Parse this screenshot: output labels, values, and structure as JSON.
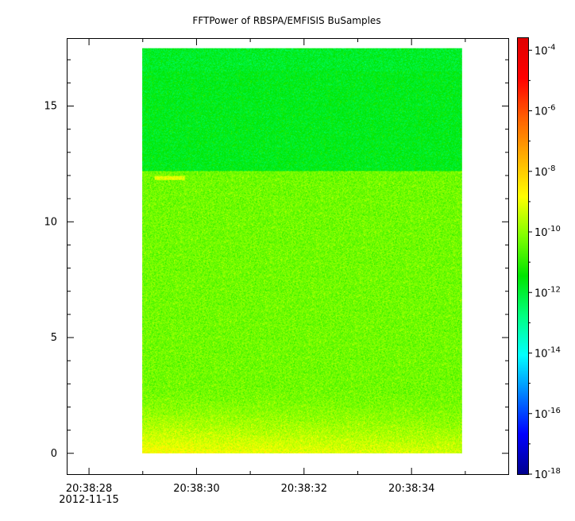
{
  "chart_data": {
    "type": "heatmap",
    "title": "FFTPower of RBSPA/EMFISIS  BuSamples",
    "xlabel": "",
    "ylabel": "",
    "x_ticks": [
      {
        "time": "20:38:28",
        "date": "2012-11-15"
      },
      {
        "time": "20:38:30",
        "date": ""
      },
      {
        "time": "20:38:32",
        "date": ""
      },
      {
        "time": "20:38:34",
        "date": ""
      }
    ],
    "x_range": [
      "20:38:27.6",
      "20:38:35.8"
    ],
    "data_x_range": [
      "20:38:28.99",
      "20:38:34.94"
    ],
    "y_ticks": [
      0,
      5,
      10,
      15
    ],
    "y_range": [
      -0.9,
      17.9
    ],
    "data_y_range": [
      0,
      17.5
    ],
    "colorbar": {
      "scale": "log",
      "range_exponent": [
        -18,
        -3.6
      ],
      "tick_exponents": [
        -18,
        -16,
        -14,
        -12,
        -10,
        -8,
        -6,
        -4
      ],
      "colors": [
        "#00008f",
        "#0000ff",
        "#0080ff",
        "#00ffff",
        "#00ff80",
        "#00e600",
        "#80ff00",
        "#ffff00",
        "#ffb000",
        "#ff6000",
        "#ff0000",
        "#e00000"
      ]
    },
    "bands": [
      {
        "y_from": 12.2,
        "y_to": 17.5,
        "log_power": -11.7,
        "note": "upper band"
      },
      {
        "y_from": 3.0,
        "y_to": 12.2,
        "log_power": -10.3
      },
      {
        "y_from": 0.0,
        "y_to": 2.5,
        "log_power": -8.8
      }
    ],
    "grid": false
  }
}
